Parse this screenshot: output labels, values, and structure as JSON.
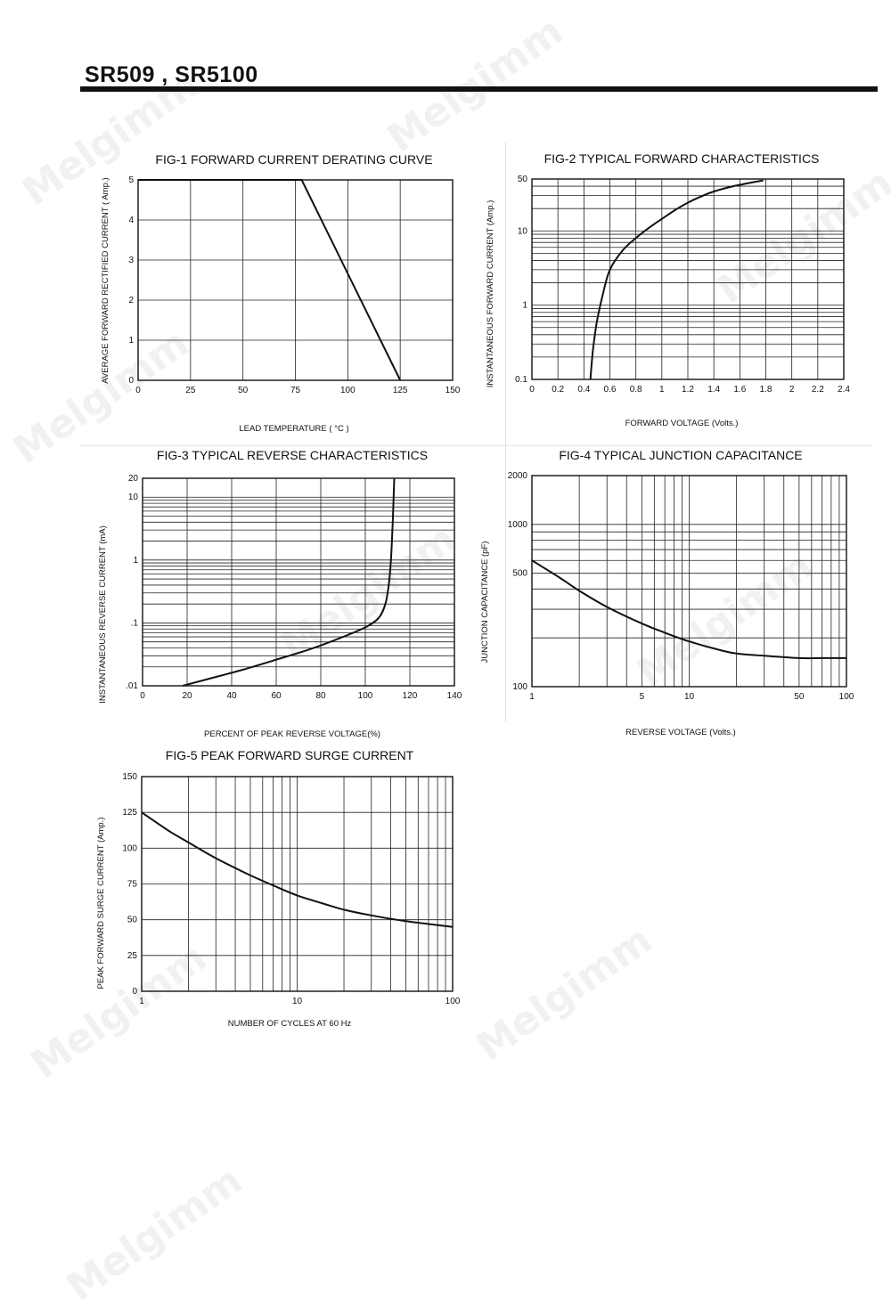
{
  "header": {
    "title": "SR509 , SR5100"
  },
  "watermark_text": "Melgimm",
  "chart_data": [
    {
      "id": "fig1",
      "type": "line",
      "title": "FIG-1 FORWARD CURRENT DERATING CURVE",
      "xlabel": "LEAD TEMPERATURE ( °C )",
      "ylabel": "AVERAGE FORWARD RECTIFIED CURRENT ( Amp.)",
      "xscale": "linear",
      "yscale": "linear",
      "xlim": [
        0,
        150
      ],
      "ylim": [
        0,
        5
      ],
      "xticks": [
        0,
        25,
        50,
        75,
        100,
        125,
        150
      ],
      "xtick_labels": [
        "0",
        "25",
        "50",
        "75",
        "100",
        "125",
        "150"
      ],
      "yticks": [
        0,
        1,
        2,
        3,
        4,
        5
      ],
      "ytick_labels": [
        "0",
        "1",
        "2",
        "3",
        "4",
        "5"
      ],
      "xgrid": [
        0,
        25,
        50,
        75,
        100,
        125,
        150
      ],
      "ygrid": [
        0,
        1,
        2,
        3,
        4,
        5
      ],
      "grid": true,
      "series": [
        {
          "x": [
            0,
            78,
            125
          ],
          "y": [
            5,
            5,
            0
          ]
        }
      ]
    },
    {
      "id": "fig2",
      "type": "line",
      "title": "FIG-2 TYPICAL FORWARD CHARACTERISTICS",
      "xlabel": "FORWARD VOLTAGE (Volts.)",
      "ylabel": "INSTANTANEOUS FORWARD CURRENT (Amp.)",
      "xscale": "linear",
      "yscale": "log",
      "xlim": [
        0,
        2.4
      ],
      "ylim": [
        0.1,
        50
      ],
      "xticks": [
        0,
        0.2,
        0.4,
        0.6,
        0.8,
        1,
        1.2,
        1.4,
        1.6,
        1.8,
        2,
        2.2,
        2.4
      ],
      "xtick_labels": [
        "0",
        "0.2",
        "0.4",
        "0.6",
        "0.8",
        "1",
        "1.2",
        "1.4",
        "1.6",
        "1.8",
        "2",
        "2.2",
        "2.4"
      ],
      "yticks": [
        0.1,
        1,
        10,
        50
      ],
      "ytick_labels": [
        "0.1",
        "1",
        "10",
        "50"
      ],
      "xgrid": [
        0,
        0.2,
        0.4,
        0.6,
        0.8,
        1,
        1.2,
        1.4,
        1.6,
        1.8,
        2,
        2.2,
        2.4
      ],
      "ygrid": [
        0.1,
        0.2,
        0.3,
        0.4,
        0.5,
        0.6,
        0.7,
        0.8,
        0.9,
        1,
        2,
        3,
        4,
        5,
        6,
        7,
        8,
        9,
        10,
        20,
        30,
        40,
        50
      ],
      "grid": true,
      "series": [
        {
          "x": [
            0.45,
            0.47,
            0.5,
            0.55,
            0.6,
            0.7,
            0.8,
            0.9,
            1.0,
            1.1,
            1.2,
            1.3,
            1.4,
            1.55,
            1.78
          ],
          "y": [
            0.1,
            0.25,
            0.6,
            1.5,
            3,
            5.5,
            8,
            11,
            14.5,
            19,
            24,
            29,
            34,
            40,
            48
          ]
        }
      ]
    },
    {
      "id": "fig3",
      "type": "line",
      "title": "FIG-3 TYPICAL REVERSE CHARACTERISTICS",
      "xlabel": "PERCENT OF PEAK REVERSE VOLTAGE(%)",
      "ylabel": "INSTANTANEOUS REVERSE CURRENT (mA)",
      "xscale": "linear",
      "yscale": "log",
      "xlim": [
        0,
        140
      ],
      "ylim": [
        0.01,
        20
      ],
      "xticks": [
        0,
        20,
        40,
        60,
        80,
        100,
        120,
        140
      ],
      "xtick_labels": [
        "0",
        "20",
        "40",
        "60",
        "80",
        "100",
        "120",
        "140"
      ],
      "yticks": [
        0.01,
        0.1,
        1,
        10,
        20
      ],
      "ytick_labels": [
        ".01",
        ".1",
        "1",
        "10",
        "20"
      ],
      "xgrid": [
        0,
        20,
        40,
        60,
        80,
        100,
        120,
        140
      ],
      "ygrid": [
        0.01,
        0.02,
        0.03,
        0.04,
        0.05,
        0.06,
        0.07,
        0.08,
        0.09,
        0.1,
        0.2,
        0.3,
        0.4,
        0.5,
        0.6,
        0.7,
        0.8,
        0.9,
        1,
        2,
        3,
        4,
        5,
        6,
        7,
        8,
        9,
        10,
        20
      ],
      "grid": true,
      "series": [
        {
          "x": [
            18,
            30,
            45,
            60,
            75,
            90,
            100,
            106,
            109,
            110.5,
            111.5,
            112.3,
            113
          ],
          "y": [
            0.01,
            0.013,
            0.018,
            0.026,
            0.038,
            0.06,
            0.085,
            0.12,
            0.2,
            0.4,
            1.0,
            4.0,
            20
          ]
        }
      ]
    },
    {
      "id": "fig4",
      "type": "line",
      "title": "FIG-4 TYPICAL JUNCTION CAPACITANCE",
      "xlabel": "REVERSE VOLTAGE (Volts.)",
      "ylabel": "JUNCTION CAPACITANCE (pF)",
      "xscale": "log",
      "yscale": "log",
      "xlim": [
        1,
        100
      ],
      "ylim": [
        100,
        2000
      ],
      "xticks": [
        1,
        5,
        10,
        50,
        100
      ],
      "xtick_labels": [
        "1",
        "5",
        "10",
        "50",
        "100"
      ],
      "yticks": [
        100,
        500,
        1000,
        2000
      ],
      "ytick_labels": [
        "100",
        "500",
        "1000",
        "2000"
      ],
      "xgrid": [
        1,
        2,
        3,
        4,
        5,
        6,
        7,
        8,
        9,
        10,
        20,
        30,
        40,
        50,
        60,
        70,
        80,
        90,
        100
      ],
      "ygrid": [
        100,
        200,
        300,
        400,
        500,
        600,
        700,
        800,
        900,
        1000,
        2000
      ],
      "grid": true,
      "series": [
        {
          "x": [
            1,
            1.5,
            2,
            3,
            5,
            7,
            10,
            15,
            20,
            30,
            50,
            70,
            100
          ],
          "y": [
            600,
            470,
            390,
            310,
            245,
            215,
            190,
            170,
            160,
            155,
            150,
            150,
            150
          ]
        }
      ]
    },
    {
      "id": "fig5",
      "type": "line",
      "title": "FIG-5 PEAK FORWARD SURGE CURRENT",
      "xlabel": "NUMBER OF CYCLES AT 60 Hz",
      "ylabel": "PEAK FORWARD SURGE CURRENT (Amp.)",
      "xscale": "log",
      "yscale": "linear",
      "xlim": [
        1,
        100
      ],
      "ylim": [
        0,
        150
      ],
      "xticks": [
        1,
        10,
        100
      ],
      "xtick_labels": [
        "1",
        "10",
        "100"
      ],
      "yticks": [
        0,
        25,
        50,
        75,
        100,
        125,
        150
      ],
      "ytick_labels": [
        "0",
        "25",
        "50",
        "75",
        "100",
        "125",
        "150"
      ],
      "xgrid": [
        1,
        2,
        3,
        4,
        5,
        6,
        7,
        8,
        9,
        10,
        20,
        30,
        40,
        50,
        60,
        70,
        80,
        90,
        100
      ],
      "ygrid": [
        0,
        25,
        50,
        75,
        100,
        125,
        150
      ],
      "grid": true,
      "series": [
        {
          "x": [
            1,
            1.5,
            2,
            3,
            5,
            7,
            10,
            15,
            20,
            30,
            50,
            70,
            100
          ],
          "y": [
            125,
            112,
            104,
            93,
            81,
            74,
            67,
            61,
            57,
            53,
            49,
            47,
            45
          ]
        }
      ]
    }
  ]
}
